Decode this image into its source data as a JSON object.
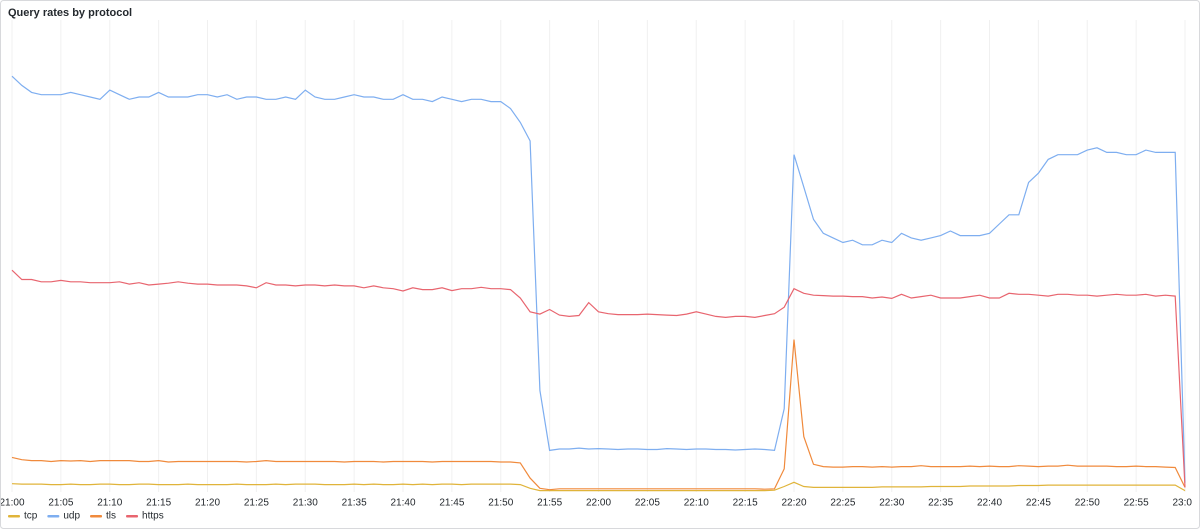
{
  "chart_data": {
    "type": "line",
    "title": "Query rates by protocol",
    "grid": true,
    "legend": "bottom-left",
    "ylim": [
      0,
      100
    ],
    "x": [
      "21:00",
      null,
      null,
      null,
      null,
      "21:05",
      null,
      null,
      null,
      null,
      "21:10",
      null,
      null,
      null,
      null,
      "21:15",
      null,
      null,
      null,
      null,
      "21:20",
      null,
      null,
      null,
      null,
      "21:25",
      null,
      null,
      null,
      null,
      "21:30",
      null,
      null,
      null,
      null,
      "21:35",
      null,
      null,
      null,
      null,
      "21:40",
      null,
      null,
      null,
      null,
      "21:45",
      null,
      null,
      null,
      null,
      "21:50",
      null,
      null,
      null,
      null,
      "21:55",
      null,
      null,
      null,
      null,
      "22:00",
      null,
      null,
      null,
      null,
      "22:05",
      null,
      null,
      null,
      null,
      "22:10",
      null,
      null,
      null,
      null,
      "22:15",
      null,
      null,
      null,
      null,
      "22:20",
      null,
      null,
      null,
      null,
      "22:25",
      null,
      null,
      null,
      null,
      "22:30",
      null,
      null,
      null,
      null,
      "22:35",
      null,
      null,
      null,
      null,
      "22:40",
      null,
      null,
      null,
      null,
      "22:45",
      null,
      null,
      null,
      null,
      "22:50",
      null,
      null,
      null,
      null,
      "22:55",
      null,
      null,
      null,
      null,
      "23:00"
    ],
    "series": [
      {
        "name": "tcp",
        "color": "#e0b43a",
        "values": [
          1.8,
          1.7,
          1.7,
          1.7,
          1.6,
          1.6,
          1.7,
          1.6,
          1.6,
          1.7,
          1.7,
          1.6,
          1.6,
          1.7,
          1.7,
          1.6,
          1.6,
          1.6,
          1.7,
          1.6,
          1.6,
          1.6,
          1.6,
          1.7,
          1.6,
          1.6,
          1.6,
          1.7,
          1.6,
          1.7,
          1.7,
          1.7,
          1.6,
          1.6,
          1.6,
          1.7,
          1.6,
          1.7,
          1.6,
          1.6,
          1.7,
          1.6,
          1.7,
          1.6,
          1.7,
          1.7,
          1.6,
          1.7,
          1.7,
          1.7,
          1.7,
          1.7,
          1.6,
          0.8,
          0.3,
          0.3,
          0.3,
          0.3,
          0.3,
          0.3,
          0.3,
          0.3,
          0.3,
          0.3,
          0.3,
          0.3,
          0.3,
          0.3,
          0.3,
          0.3,
          0.3,
          0.3,
          0.3,
          0.3,
          0.3,
          0.3,
          0.3,
          0.3,
          0.4,
          1.2,
          2.1,
          1.2,
          1,
          1,
          1,
          1,
          1,
          1,
          1,
          1.1,
          1.1,
          1.1,
          1.1,
          1.1,
          1.2,
          1.2,
          1.2,
          1.2,
          1.3,
          1.3,
          1.3,
          1.3,
          1.3,
          1.4,
          1.4,
          1.4,
          1.5,
          1.5,
          1.5,
          1.5,
          1.5,
          1.5,
          1.5,
          1.5,
          1.5,
          1.5,
          1.5,
          1.5,
          1.5,
          1.5,
          0.3
        ]
      },
      {
        "name": "udp",
        "color": "#7eaef0",
        "values": [
          90,
          88,
          86.5,
          86,
          86,
          86,
          86.5,
          86,
          85.5,
          85,
          87,
          86,
          85,
          85.5,
          85.5,
          86.5,
          85.5,
          85.5,
          85.5,
          86,
          86,
          85.5,
          86,
          85,
          85.5,
          85.5,
          85,
          85,
          85.5,
          85,
          87,
          85.5,
          85,
          85,
          85.5,
          86,
          85.5,
          85.5,
          85,
          85,
          86,
          85,
          85,
          84.5,
          85.5,
          85,
          84.5,
          85,
          85,
          84.5,
          84.5,
          83,
          80,
          76,
          22,
          9,
          9.3,
          9.3,
          9.5,
          9.3,
          9.4,
          9.3,
          9.2,
          9.3,
          9.3,
          9.2,
          9.2,
          9.4,
          9.3,
          9.2,
          9.3,
          9.3,
          9.2,
          9.2,
          9.1,
          9.2,
          9.3,
          9.2,
          9,
          18,
          73,
          66,
          59,
          56,
          55,
          54,
          54.5,
          53.5,
          53.5,
          54.5,
          54,
          56,
          55,
          54.5,
          55,
          55.5,
          56.5,
          55.5,
          55.5,
          55.5,
          56,
          58,
          60,
          60,
          67,
          69,
          72,
          73,
          73,
          73,
          74,
          74.5,
          73.5,
          73.5,
          73,
          73,
          74,
          73.5,
          73.5,
          73.5,
          2
        ]
      },
      {
        "name": "tls",
        "color": "#f08a3c",
        "values": [
          7.5,
          7,
          6.8,
          6.8,
          6.6,
          6.8,
          6.7,
          6.8,
          6.6,
          6.8,
          6.8,
          6.8,
          6.8,
          6.6,
          6.6,
          6.8,
          6.5,
          6.6,
          6.6,
          6.6,
          6.6,
          6.6,
          6.6,
          6.6,
          6.5,
          6.6,
          6.8,
          6.6,
          6.6,
          6.6,
          6.6,
          6.6,
          6.6,
          6.6,
          6.5,
          6.6,
          6.6,
          6.6,
          6.5,
          6.6,
          6.6,
          6.6,
          6.6,
          6.5,
          6.6,
          6.6,
          6.6,
          6.6,
          6.6,
          6.6,
          6.5,
          6.5,
          6.3,
          3,
          0.8,
          0.5,
          0.7,
          0.7,
          0.7,
          0.7,
          0.7,
          0.7,
          0.7,
          0.7,
          0.7,
          0.7,
          0.7,
          0.7,
          0.7,
          0.7,
          0.7,
          0.7,
          0.7,
          0.7,
          0.7,
          0.7,
          0.7,
          0.6,
          0.7,
          5,
          33,
          12,
          6,
          5.5,
          5.4,
          5.4,
          5.5,
          5.5,
          5.4,
          5.5,
          5.4,
          5.5,
          5.5,
          5.7,
          5.5,
          5.5,
          5.5,
          5.5,
          5.6,
          5.5,
          5.6,
          5.5,
          5.5,
          5.7,
          5.6,
          5.5,
          5.6,
          5.6,
          5.8,
          5.6,
          5.6,
          5.6,
          5.6,
          5.5,
          5.5,
          5.6,
          5.5,
          5.5,
          5.4,
          5.3,
          1
        ]
      },
      {
        "name": "https",
        "color": "#e8656f",
        "values": [
          48,
          46,
          46,
          45.5,
          45.5,
          45.8,
          45.5,
          45.5,
          45.3,
          45.3,
          45.3,
          45.5,
          45,
          45.3,
          44.8,
          45,
          45.2,
          45.5,
          45.2,
          45,
          45,
          44.8,
          44.8,
          44.8,
          44.6,
          44.2,
          45.3,
          44.8,
          44.8,
          44.6,
          44.8,
          44.8,
          44.6,
          44.8,
          44.6,
          44.6,
          44.2,
          44.6,
          44.2,
          44,
          43.5,
          44.2,
          43.8,
          43.8,
          44.2,
          43.6,
          44,
          44,
          44.3,
          44,
          44,
          43.8,
          42,
          39,
          38.5,
          39.5,
          38.3,
          38,
          38.2,
          41,
          39,
          38.6,
          38.4,
          38.4,
          38.4,
          38.5,
          38.4,
          38.3,
          38.2,
          38.5,
          39,
          38.5,
          38,
          37.8,
          38,
          38,
          37.8,
          38.2,
          38.6,
          40,
          44,
          43,
          42.6,
          42.5,
          42.4,
          42.4,
          42.3,
          42.3,
          42,
          42.2,
          41.9,
          42.8,
          42,
          42.3,
          42.6,
          42,
          42,
          42,
          42.3,
          42.6,
          42,
          42,
          43,
          42.8,
          42.8,
          42.6,
          42.4,
          42.8,
          42.8,
          42.6,
          42.6,
          42.4,
          42.6,
          42.8,
          42.6,
          42.6,
          42.8,
          42.4,
          42.6,
          42.4,
          1
        ]
      }
    ]
  }
}
